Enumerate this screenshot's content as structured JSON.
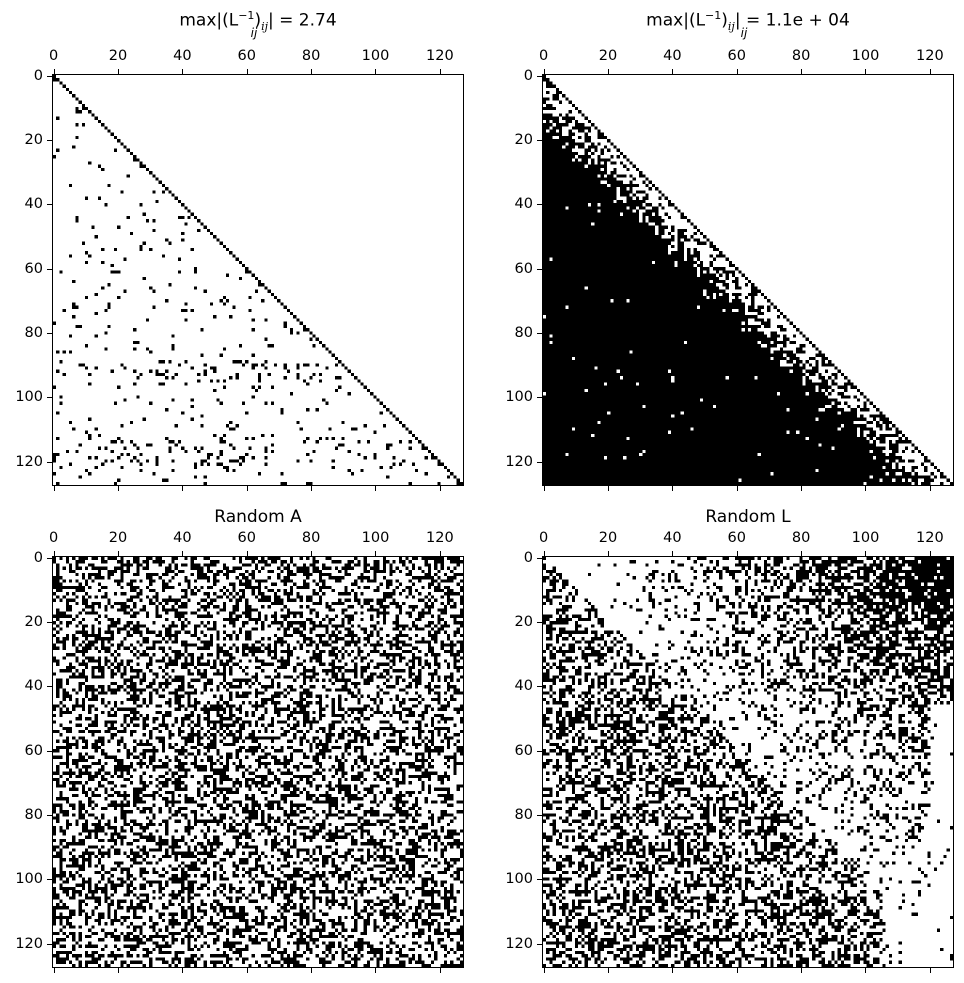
{
  "figure": {
    "layout": "2x2 grid of spy-style binary sparsity plots",
    "matrix_size": 128,
    "colors": {
      "nonzero": "#000000",
      "zero": "#ffffff",
      "axis": "#000000"
    }
  },
  "panels": [
    {
      "id": "inv_L_sparse",
      "title_text": "max|(L⁻¹)ij| = 2.74",
      "title_main": "max|(L",
      "title_sup": "−1",
      "title_rest": ")",
      "title_sub_ij": "ij",
      "title_eq": "| = 2.74",
      "title_under": "ij",
      "pattern": "sparse-lower-triangular",
      "density": 0.045,
      "seed": 11
    },
    {
      "id": "inv_L_dense",
      "title_text": "max|(L⁻¹)ij| = 1.1e + 04",
      "title_main": "max|(L",
      "title_sup": "−1",
      "title_rest": ")",
      "title_sub_ij": "ij",
      "title_eq": "| = 1.1e + 04",
      "title_under": "ij",
      "pattern": "dense-lower-triangular-fill",
      "density": 0.9,
      "seed": 23
    },
    {
      "id": "random_A",
      "title_text": "Random A",
      "pattern": "uniform-random",
      "density": 0.42,
      "seed": 37
    },
    {
      "id": "random_L",
      "title_text": "Random L",
      "pattern": "random-lower-plus-upper-right-gradient",
      "density": 0.45,
      "seed": 53
    }
  ],
  "axes": {
    "x_ticks": [
      0,
      20,
      40,
      60,
      80,
      100,
      120
    ],
    "y_ticks": [
      0,
      20,
      40,
      60,
      80,
      100,
      120
    ],
    "x_tick_labels": [
      "0",
      "20",
      "40",
      "60",
      "80",
      "100",
      "120"
    ],
    "y_tick_labels": [
      "0",
      "20",
      "40",
      "60",
      "80",
      "100",
      "120"
    ],
    "xlim": [
      -0.5,
      127.5
    ],
    "ylim": [
      127.5,
      -0.5
    ],
    "x_tick_position": "top"
  },
  "chart_data": [
    {
      "type": "heatmap",
      "title": "max_ij |(L^-1)_ij| = 2.74",
      "description": "Binary sparsity pattern (spy plot) of inverse of a well-conditioned lower-triangular L: full main diagonal plus scattered nonzeros below the diagonal, none above",
      "shape": [
        128,
        128
      ],
      "xlabel": "",
      "ylabel": "",
      "x_tick_labels": [
        "0",
        "20",
        "40",
        "60",
        "80",
        "100",
        "120"
      ],
      "y_tick_labels": [
        "0",
        "20",
        "40",
        "60",
        "80",
        "100",
        "120"
      ],
      "grid": false,
      "legend": null,
      "structure": {
        "diagonal": "full",
        "upper_triangle": "empty",
        "lower_triangle_density_approx": 0.045,
        "denser_rows_near": [
          90,
          95,
          115,
          120
        ]
      }
    },
    {
      "type": "heatmap",
      "title": "max_ij |(L^-1)_ij| = 1.1e + 04",
      "description": "Binary sparsity pattern of inverse of ill-conditioned L: full diagonal, upper triangle empty, lower triangle nearly completely filled with density increasing away from the diagonal",
      "shape": [
        128,
        128
      ],
      "xlabel": "",
      "ylabel": "",
      "x_tick_labels": [
        "0",
        "20",
        "40",
        "60",
        "80",
        "100",
        "120"
      ],
      "y_tick_labels": [
        "0",
        "20",
        "40",
        "60",
        "80",
        "100",
        "120"
      ],
      "grid": false,
      "legend": null,
      "structure": {
        "diagonal": "full",
        "upper_triangle": "empty",
        "lower_triangle_density_approx": 0.85
      }
    },
    {
      "type": "heatmap",
      "title": "Random A",
      "description": "Binary sparsity pattern of a random dense-ish matrix; roughly uniform ~40% nonzeros across all entries",
      "shape": [
        128,
        128
      ],
      "xlabel": "",
      "ylabel": "",
      "x_tick_labels": [
        "0",
        "20",
        "40",
        "60",
        "80",
        "100",
        "120"
      ],
      "y_tick_labels": [
        "0",
        "20",
        "40",
        "60",
        "80",
        "100",
        "120"
      ],
      "grid": false,
      "legend": null,
      "structure": {
        "density_approx": 0.42
      }
    },
    {
      "type": "heatmap",
      "title": "Random L",
      "description": "Binary sparsity pattern: lower triangle randomly filled (~45%), upper triangle sparse near the diagonal with density increasing toward the top-right corner (nearly solid around rows 0-10, cols 112-127); bottom-right corner (cols > ~115, rows > ~60) mostly empty",
      "shape": [
        128,
        128
      ],
      "xlabel": "",
      "ylabel": "",
      "x_tick_labels": [
        "0",
        "20",
        "40",
        "60",
        "80",
        "100",
        "120"
      ],
      "y_tick_labels": [
        "0",
        "20",
        "40",
        "60",
        "80",
        "100",
        "120"
      ],
      "grid": false,
      "legend": null,
      "structure": {
        "lower_triangle_density_approx": 0.45,
        "upper_right_corner_density_approx": 0.75
      }
    }
  ]
}
